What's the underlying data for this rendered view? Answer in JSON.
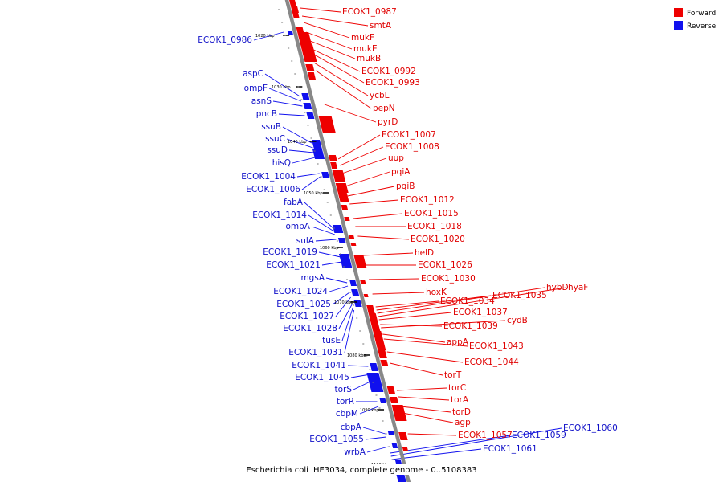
{
  "legend": [
    {
      "label": "Forward",
      "color": "#ee0000"
    },
    {
      "label": "Reverse",
      "color": "#1010ee"
    }
  ],
  "caption": "Escherichia coli IHE3034, complete genome - 0..5108383",
  "colors": {
    "forward": "#ee0000",
    "reverse": "#1010ee",
    "backbone": "#888888"
  },
  "ticks": [
    "1020 kbp",
    "1030 kbp",
    "1040 kbp",
    "1050 kbp",
    "1060 kbp",
    "1070 kbp",
    "1080 kbp",
    "1090 kbp",
    "1100 kbp"
  ],
  "forward_labels": [
    "ECOK1_0987",
    "smtA",
    "mukF",
    "mukE",
    "mukB",
    "ECOK1_0992",
    "ECOK1_0993",
    "ycbL",
    "pepN",
    "pyrD",
    "ECOK1_1007",
    "ECOK1_1008",
    "uup",
    "pqiA",
    "pqiB",
    "ECOK1_1012",
    "ECOK1_1015",
    "ECOK1_1018",
    "ECOK1_1020",
    "helD",
    "ECOK1_1026",
    "ECOK1_1030",
    "hoxK",
    "ECOK1_1034",
    "ECOK1_1035",
    "hybD",
    "hyaF",
    "ECOK1_1037",
    "ECOK1_1039",
    "cydB",
    "appA",
    "ECOK1_1043",
    "ECOK1_1044",
    "torT",
    "torC",
    "torA",
    "torD",
    "agp",
    "ECOK1_1057"
  ],
  "reverse_labels": [
    "ECOK1_0986",
    "aspC",
    "ompF",
    "asnS",
    "pncB",
    "ssuB",
    "ssuC",
    "ssuD",
    "hisQ",
    "ECOK1_1004",
    "ECOK1_1006",
    "fabA",
    "ECOK1_1014",
    "ompA",
    "sulA",
    "ECOK1_1019",
    "ECOK1_1021",
    "mgsA",
    "ECOK1_1024",
    "ECOK1_1025",
    "ECOK1_1027",
    "ECOK1_1028",
    "tusE",
    "ECOK1_1031",
    "ECOK1_1041",
    "ECOK1_1045",
    "torS",
    "torR",
    "cbpM",
    "cbpA",
    "ECOK1_1055",
    "wrbA",
    "ECOK1_1059",
    "ECOK1_1060",
    "ECOK1_1061"
  ]
}
